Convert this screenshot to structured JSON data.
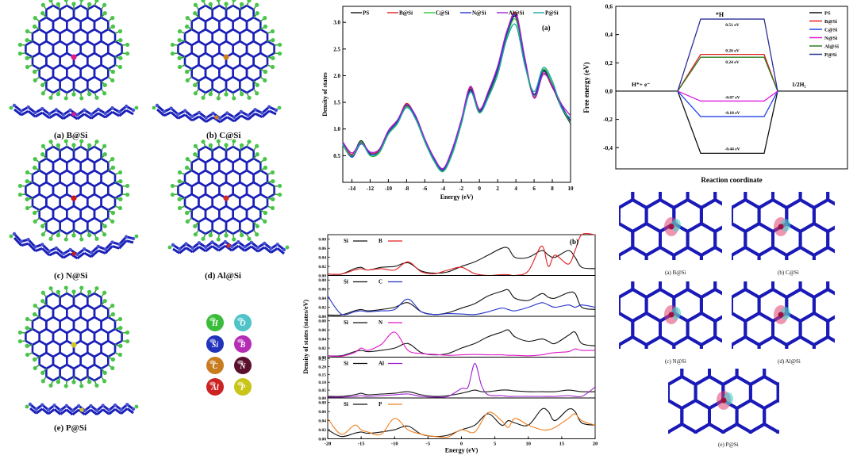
{
  "structures": {
    "captions": [
      "(a) B@Si",
      "(b) C@Si",
      "(c) N@Si",
      "(d) Al@Si",
      "(e) P@Si"
    ],
    "dopant_colors": [
      "#e0198a",
      "#d07f1c",
      "#d01818",
      "#cf2c2c",
      "#d2c526"
    ]
  },
  "legend_atoms": [
    {
      "symbol": "H",
      "color": "#3bbd3b"
    },
    {
      "symbol": "O",
      "color": "#4fc4c8"
    },
    {
      "symbol": "Si",
      "color": "#2233bb"
    },
    {
      "symbol": "B",
      "color": "#b52cb5"
    },
    {
      "symbol": "C",
      "color": "#c87c1d"
    },
    {
      "symbol": "N",
      "color": "#5a0f2c"
    },
    {
      "symbol": "Al",
      "color": "#cc2222"
    },
    {
      "symbol": "P",
      "color": "#c8c418"
    }
  ],
  "charge_density": {
    "captions": [
      "(a) B@Si",
      "(b) C@Si",
      "(c) N@Si",
      "(d) Al@Si",
      "(e) P@Si"
    ]
  },
  "chart_data": [
    {
      "type": "line",
      "panel_label": "(a)",
      "xlabel": "Energy (eV)",
      "ylabel": "Density of states",
      "xlim": [
        -15,
        10
      ],
      "ylim": [
        0,
        3.3
      ],
      "x_ticks": [
        -14,
        -12,
        -10,
        -8,
        -6,
        -4,
        -2,
        0,
        2,
        4,
        6,
        8,
        10
      ],
      "y_ticks": [
        0.5,
        1.0,
        1.5,
        2.0,
        2.5,
        3.0
      ],
      "y_tick_labels": [
        "0.5",
        "1.0",
        "1.5",
        "2.0",
        "2.5",
        "3.0"
      ],
      "legend": "top",
      "series": [
        {
          "name": "PS",
          "color": "#111111",
          "x": [
            -15,
            -14,
            -13,
            -12,
            -11,
            -10,
            -9,
            -8,
            -7,
            -6,
            -5,
            -4,
            -3,
            -2,
            -1,
            0,
            1,
            2,
            3,
            4,
            5,
            6,
            7,
            8,
            9,
            10
          ],
          "y": [
            0.72,
            0.5,
            0.78,
            0.52,
            0.56,
            0.92,
            1.12,
            1.44,
            1.2,
            0.78,
            0.42,
            0.22,
            0.55,
            1.1,
            1.75,
            1.32,
            1.65,
            2.1,
            2.75,
            3.1,
            2.25,
            1.65,
            2.1,
            1.8,
            1.4,
            1.1
          ]
        },
        {
          "name": "B@Si",
          "color": "#e02020",
          "x": [
            -15,
            -14,
            -13,
            -12,
            -11,
            -10,
            -9,
            -8,
            -7,
            -6,
            -5,
            -4,
            -3,
            -2,
            -1,
            0,
            1,
            2,
            3,
            4,
            5,
            6,
            7,
            8,
            9,
            10
          ],
          "y": [
            0.74,
            0.52,
            0.75,
            0.55,
            0.6,
            0.95,
            1.15,
            1.48,
            1.22,
            0.8,
            0.45,
            0.24,
            0.6,
            1.15,
            1.78,
            1.35,
            1.7,
            2.15,
            2.8,
            3.18,
            2.3,
            1.6,
            2.05,
            1.78,
            1.45,
            1.15
          ]
        },
        {
          "name": "C@Si",
          "color": "#2ec82e",
          "x": [
            -15,
            -14,
            -13,
            -12,
            -11,
            -10,
            -9,
            -8,
            -7,
            -6,
            -5,
            -4,
            -3,
            -2,
            -1,
            0,
            1,
            2,
            3,
            4,
            5,
            6,
            7,
            8,
            9,
            10
          ],
          "y": [
            0.7,
            0.48,
            0.76,
            0.5,
            0.55,
            0.9,
            1.1,
            1.42,
            1.18,
            0.76,
            0.4,
            0.2,
            0.52,
            1.08,
            1.7,
            1.3,
            1.62,
            2.05,
            2.72,
            3.05,
            2.2,
            1.62,
            2.12,
            1.85,
            1.42,
            1.12
          ]
        },
        {
          "name": "N@Si",
          "color": "#2233cc",
          "x": [
            -15,
            -14,
            -13,
            -12,
            -11,
            -10,
            -9,
            -8,
            -7,
            -6,
            -5,
            -4,
            -3,
            -2,
            -1,
            0,
            1,
            2,
            3,
            4,
            5,
            6,
            7,
            8,
            9,
            10
          ],
          "y": [
            0.73,
            0.47,
            0.72,
            0.54,
            0.58,
            0.93,
            1.14,
            1.46,
            1.21,
            0.79,
            0.44,
            0.23,
            0.58,
            1.12,
            1.72,
            1.33,
            1.68,
            2.12,
            2.78,
            3.12,
            2.27,
            1.64,
            2.08,
            1.8,
            1.44,
            1.14
          ]
        },
        {
          "name": "Al@Si",
          "color": "#a020d0",
          "x": [
            -15,
            -14,
            -13,
            -12,
            -11,
            -10,
            -9,
            -8,
            -7,
            -6,
            -5,
            -4,
            -3,
            -2,
            -1,
            0,
            1,
            2,
            3,
            4,
            5,
            6,
            7,
            8,
            9,
            10
          ],
          "y": [
            0.76,
            0.55,
            0.74,
            0.57,
            0.62,
            0.97,
            1.17,
            1.45,
            1.25,
            0.82,
            0.47,
            0.26,
            0.62,
            1.17,
            1.8,
            1.37,
            1.72,
            2.18,
            2.83,
            3.15,
            2.32,
            1.58,
            2.02,
            1.82,
            1.47,
            1.25
          ]
        },
        {
          "name": "P@Si",
          "color": "#1aa6a6",
          "x": [
            -15,
            -14,
            -13,
            -12,
            -11,
            -10,
            -9,
            -8,
            -7,
            -6,
            -5,
            -4,
            -3,
            -2,
            -1,
            0,
            1,
            2,
            3,
            4,
            5,
            6,
            7,
            8,
            9,
            10
          ],
          "y": [
            0.71,
            0.49,
            0.73,
            0.51,
            0.57,
            0.91,
            1.11,
            1.4,
            1.19,
            0.77,
            0.41,
            0.21,
            0.54,
            1.09,
            1.69,
            1.31,
            1.6,
            2.02,
            2.68,
            2.95,
            2.18,
            1.7,
            2.15,
            1.9,
            1.4,
            1.2
          ]
        }
      ]
    },
    {
      "type": "line",
      "panel_label": "(b)",
      "xlabel": "Energy (eV)",
      "ylabel": "Density of states (states/eV)",
      "xlim": [
        -20,
        20
      ],
      "x_ticks": [
        -20,
        -15,
        -10,
        -5,
        0,
        5,
        10,
        15,
        20
      ],
      "subplots": [
        {
          "labels": [
            "Si",
            "B"
          ],
          "colors": [
            "#111111",
            "#e02020"
          ],
          "ylim": [
            0,
            0.09
          ],
          "y_ticks": [
            0.0,
            0.02,
            0.04,
            0.06,
            0.08
          ],
          "y_tick_labels": [
            "0.00",
            "0.02",
            "0.04",
            "0.06",
            "0.08"
          ],
          "x": [
            -20,
            -18,
            -16,
            -15,
            -14,
            -12,
            -10,
            -8,
            -6,
            -4,
            -2,
            0,
            2,
            4,
            6,
            7,
            8,
            10,
            12,
            13,
            14,
            16,
            17,
            18,
            20
          ],
          "series": [
            [
              0.003,
              0.003,
              0.015,
              0.018,
              0.012,
              0.018,
              0.02,
              0.028,
              0.01,
              0.005,
              0.008,
              0.02,
              0.03,
              0.045,
              0.06,
              0.06,
              0.04,
              0.04,
              0.055,
              0.045,
              0.04,
              0.055,
              0.04,
              0.018,
              0.015
            ],
            [
              0.003,
              0.003,
              0.012,
              0.015,
              0.012,
              0.015,
              0.012,
              0.03,
              0.008,
              0.004,
              0.012,
              0.018,
              0.004,
              0.0,
              0.002,
              0.002,
              0.0,
              0.01,
              0.065,
              0.02,
              0.045,
              0.025,
              0.055,
              0.09,
              0.09
            ]
          ]
        },
        {
          "labels": [
            "Si",
            "C"
          ],
          "colors": [
            "#111111",
            "#2233cc"
          ],
          "ylim": [
            0,
            0.09
          ],
          "y_ticks": [
            0.0,
            0.02,
            0.04,
            0.06,
            0.08
          ],
          "y_tick_labels": [
            "0.00",
            "0.02",
            "0.04",
            "0.06",
            "0.08"
          ],
          "x": [
            -20,
            -18,
            -16,
            -15,
            -14,
            -12,
            -10,
            -8,
            -6,
            -4,
            -2,
            0,
            2,
            4,
            6,
            7,
            8,
            10,
            12,
            13,
            14,
            16,
            17,
            18,
            20
          ],
          "series": [
            [
              0.003,
              0.003,
              0.012,
              0.015,
              0.012,
              0.015,
              0.02,
              0.03,
              0.01,
              0.004,
              0.008,
              0.018,
              0.028,
              0.045,
              0.055,
              0.058,
              0.04,
              0.035,
              0.05,
              0.042,
              0.04,
              0.052,
              0.05,
              0.02,
              0.015
            ],
            [
              0.045,
              0.005,
              0.01,
              0.012,
              0.01,
              0.012,
              0.015,
              0.038,
              0.01,
              0.004,
              0.006,
              0.005,
              0.004,
              0.01,
              0.018,
              0.015,
              0.012,
              0.02,
              0.03,
              0.025,
              0.02,
              0.025,
              0.02,
              0.025,
              0.02
            ]
          ]
        },
        {
          "labels": [
            "Si",
            "N"
          ],
          "colors": [
            "#111111",
            "#e018c8"
          ],
          "ylim": [
            0,
            0.09
          ],
          "y_ticks": [
            0.0,
            0.02,
            0.04,
            0.06,
            0.08
          ],
          "y_tick_labels": [
            "0.00",
            "0.02",
            "0.04",
            "0.06",
            "0.08"
          ],
          "x": [
            -20,
            -18,
            -16,
            -15,
            -14,
            -12,
            -10,
            -8,
            -6,
            -4,
            -2,
            0,
            2,
            4,
            6,
            7,
            8,
            10,
            12,
            13,
            14,
            16,
            17,
            18,
            20
          ],
          "series": [
            [
              0.003,
              0.003,
              0.012,
              0.015,
              0.012,
              0.015,
              0.02,
              0.03,
              0.01,
              0.005,
              0.008,
              0.02,
              0.03,
              0.045,
              0.055,
              0.06,
              0.045,
              0.035,
              0.04,
              0.035,
              0.03,
              0.048,
              0.055,
              0.03,
              0.025
            ],
            [
              0.003,
              0.002,
              0.01,
              0.02,
              0.015,
              0.028,
              0.055,
              0.015,
              0.008,
              0.006,
              0.004,
              0.005,
              0.006,
              0.005,
              0.005,
              0.004,
              0.004,
              0.003,
              0.005,
              0.008,
              0.01,
              0.012,
              0.018,
              0.015,
              0.015
            ]
          ]
        },
        {
          "labels": [
            "Si",
            "Al"
          ],
          "colors": [
            "#111111",
            "#a020d0"
          ],
          "ylim": [
            0,
            0.26
          ],
          "y_ticks": [
            0.0,
            0.05,
            0.1,
            0.15,
            0.2,
            0.25
          ],
          "y_tick_labels": [
            "0.00",
            "0.05",
            "0.10",
            "0.15",
            "0.20",
            "0.25"
          ],
          "x": [
            -20,
            -18,
            -16,
            -15,
            -14,
            -12,
            -10,
            -8,
            -6,
            -4,
            -2,
            0,
            1,
            2,
            3,
            4,
            6,
            7,
            8,
            10,
            12,
            14,
            16,
            18,
            20
          ],
          "series": [
            [
              0.01,
              0.01,
              0.02,
              0.03,
              0.02,
              0.025,
              0.03,
              0.04,
              0.02,
              0.01,
              0.015,
              0.03,
              0.04,
              0.05,
              0.04,
              0.04,
              0.05,
              0.05,
              0.045,
              0.04,
              0.04,
              0.04,
              0.05,
              0.04,
              0.04
            ],
            [
              0.005,
              0.005,
              0.01,
              0.015,
              0.01,
              0.015,
              0.02,
              0.025,
              0.01,
              0.005,
              0.01,
              0.06,
              0.07,
              0.22,
              0.08,
              0.02,
              0.015,
              0.01,
              0.01,
              0.01,
              0.01,
              0.01,
              0.015,
              0.01,
              0.07
            ]
          ]
        },
        {
          "labels": [
            "Si",
            "P"
          ],
          "colors": [
            "#111111",
            "#f08020"
          ],
          "ylim": [
            0,
            0.09
          ],
          "y_ticks": [
            0.0,
            0.02,
            0.04,
            0.06,
            0.08
          ],
          "y_tick_labels": [
            "0.00",
            "0.02",
            "0.04",
            "0.06",
            "0.08"
          ],
          "x": [
            -20,
            -18,
            -16,
            -15,
            -14,
            -12,
            -10,
            -8,
            -6,
            -4,
            -2,
            0,
            2,
            4,
            6,
            7,
            8,
            10,
            12,
            13,
            14,
            16,
            17,
            18,
            20
          ],
          "series": [
            [
              0.02,
              0.005,
              0.012,
              0.015,
              0.012,
              0.015,
              0.02,
              0.028,
              0.01,
              0.005,
              0.008,
              0.02,
              0.03,
              0.055,
              0.03,
              0.04,
              0.035,
              0.03,
              0.065,
              0.06,
              0.04,
              0.065,
              0.06,
              0.035,
              0.03
            ],
            [
              0.045,
              0.01,
              0.03,
              0.02,
              0.015,
              0.01,
              0.045,
              0.02,
              0.01,
              0.005,
              0.004,
              0.02,
              0.015,
              0.058,
              0.04,
              0.025,
              0.045,
              0.03,
              0.02,
              0.02,
              0.025,
              0.045,
              0.055,
              0.04,
              0.03
            ]
          ]
        }
      ]
    },
    {
      "type": "line",
      "xlabel": "Reaction coordinate",
      "ylabel": "Free energy (eV)",
      "ylim": [
        -0.55,
        0.6
      ],
      "y_ticks": [
        -0.4,
        -0.2,
        0.0,
        0.2,
        0.4,
        0.6
      ],
      "y_tick_labels": [
        "-0,4",
        "-0,2",
        "0,0",
        "0,2",
        "0,4",
        "0,6"
      ],
      "annotations": [
        "*H",
        "H⁺+ e⁻",
        "1/2H₂"
      ],
      "legend": "top-right",
      "series": [
        {
          "name": "PS",
          "color": "#111111",
          "value": -0.44,
          "label": "-0.44 eV"
        },
        {
          "name": "B@Si",
          "color": "#e02020",
          "value": 0.26,
          "label": "0.26 eV"
        },
        {
          "name": "C@Si",
          "color": "#2244ee",
          "value": -0.18,
          "label": "-0.18 eV"
        },
        {
          "name": "N@Si",
          "color": "#e018e0",
          "value": -0.07,
          "label": "-0.07 eV"
        },
        {
          "name": "Al@Si",
          "color": "#2e7d1e",
          "value": 0.24,
          "label": "0.24 eV"
        },
        {
          "name": "P@Si",
          "color": "#2d2d9c",
          "value": 0.51,
          "label": "0.51 eV"
        }
      ]
    }
  ]
}
